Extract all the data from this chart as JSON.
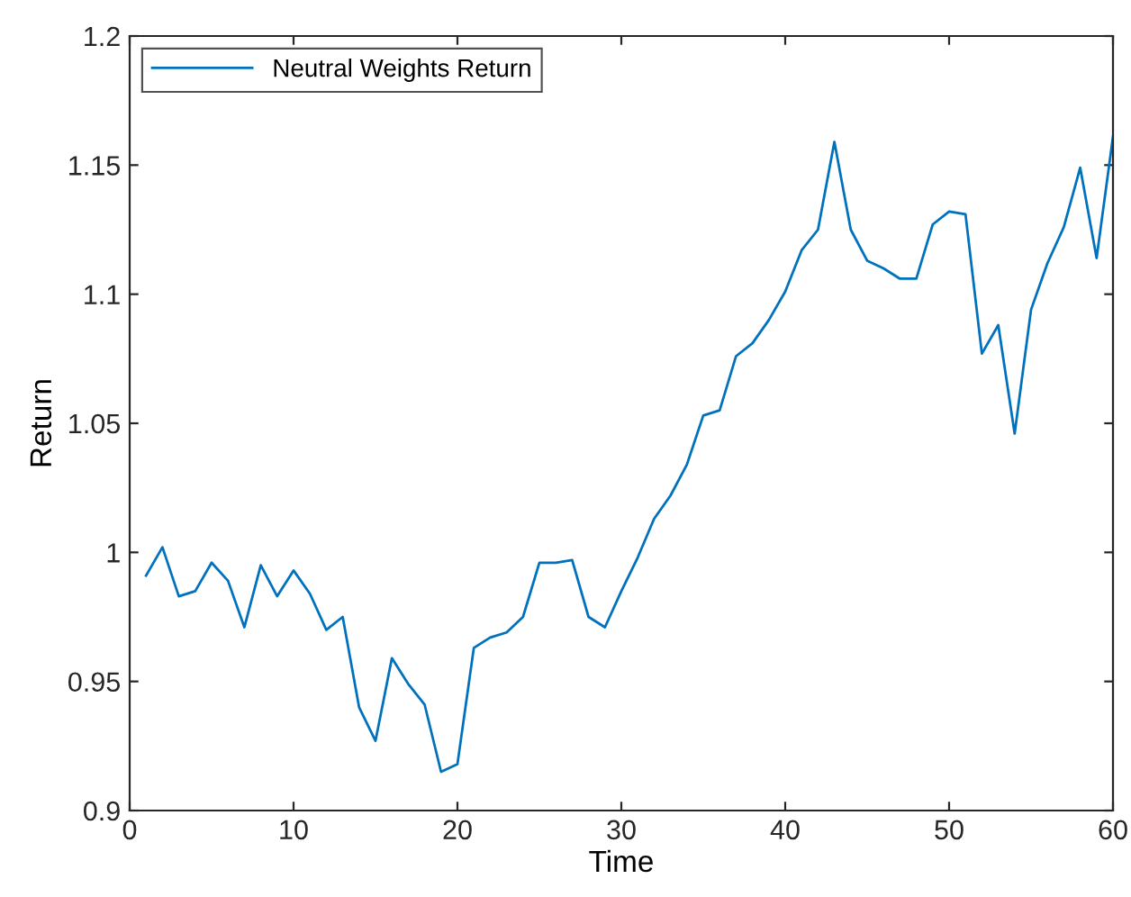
{
  "chart_data": {
    "type": "line",
    "xlabel": "Time",
    "ylabel": "Return",
    "x": [
      1,
      2,
      3,
      4,
      5,
      6,
      7,
      8,
      9,
      10,
      11,
      12,
      13,
      14,
      15,
      16,
      17,
      18,
      19,
      20,
      21,
      22,
      23,
      24,
      25,
      26,
      27,
      28,
      29,
      30,
      31,
      32,
      33,
      34,
      35,
      36,
      37,
      38,
      39,
      40,
      41,
      42,
      43,
      44,
      45,
      46,
      47,
      48,
      49,
      50,
      51,
      52,
      53,
      54,
      55,
      56,
      57,
      58,
      59,
      60
    ],
    "series": [
      {
        "name": "Neutral Weights Return",
        "color": "#0072bd",
        "values": [
          0.991,
          1.002,
          0.983,
          0.985,
          0.996,
          0.989,
          0.971,
          0.995,
          0.983,
          0.993,
          0.984,
          0.97,
          0.975,
          0.94,
          0.927,
          0.959,
          0.949,
          0.941,
          0.915,
          0.918,
          0.963,
          0.967,
          0.969,
          0.975,
          0.996,
          0.996,
          0.997,
          0.975,
          0.971,
          0.985,
          0.998,
          1.013,
          1.022,
          1.034,
          1.053,
          1.055,
          1.076,
          1.081,
          1.09,
          1.101,
          1.117,
          1.125,
          1.159,
          1.125,
          1.113,
          1.11,
          1.106,
          1.106,
          1.127,
          1.132,
          1.131,
          1.077,
          1.088,
          1.046,
          1.094,
          1.112,
          1.126,
          1.149,
          1.114,
          1.161
        ]
      }
    ],
    "xlim": [
      0,
      60
    ],
    "xticks": [
      0,
      10,
      20,
      30,
      40,
      50,
      60
    ],
    "ylim": [
      0.9,
      1.2
    ],
    "yticks": [
      0.9,
      0.95,
      1,
      1.05,
      1.1,
      1.15,
      1.2
    ],
    "legend": "top left",
    "grid": false
  }
}
